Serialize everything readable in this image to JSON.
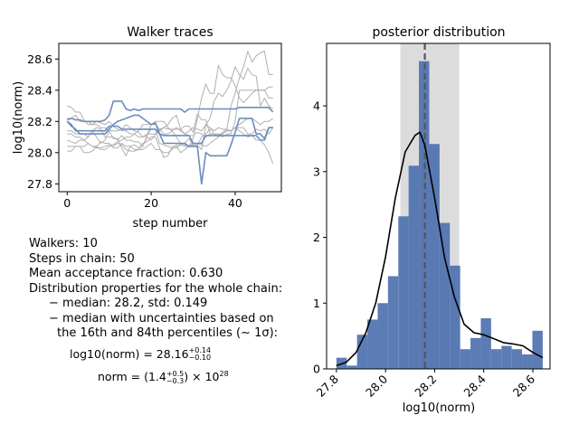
{
  "chart_data": [
    {
      "type": "line",
      "title": "Walker traces",
      "xlabel": "step number",
      "ylabel": "log10(norm)",
      "xlim": [
        -2,
        51
      ],
      "ylim": [
        27.75,
        28.7
      ],
      "xticks": [
        0,
        20,
        40
      ],
      "yticks": [
        27.8,
        28.0,
        28.2,
        28.4,
        28.6
      ],
      "walkers_count": 10,
      "steps": 50,
      "highlighted_series_color": "#6b8cbe",
      "background_series_color": "#b0b0b0",
      "series": [
        {
          "highlight": true,
          "values": [
            28.21,
            28.22,
            28.21,
            28.21,
            28.2,
            28.2,
            28.2,
            28.2,
            28.2,
            28.21,
            28.24,
            28.33,
            28.33,
            28.33,
            28.28,
            28.27,
            28.28,
            28.27,
            28.28,
            28.28,
            28.28,
            28.28,
            28.28,
            28.28,
            28.28,
            28.28,
            28.28,
            28.28,
            28.26,
            28.28,
            28.28,
            28.28,
            28.28,
            28.28,
            28.28,
            28.28,
            28.28,
            28.28,
            28.28,
            28.28,
            28.28,
            28.29,
            28.29,
            28.29,
            28.29,
            28.29,
            28.29,
            28.29,
            28.29,
            28.26
          ]
        },
        {
          "highlight": true,
          "values": [
            28.2,
            28.18,
            28.14,
            28.14,
            28.14,
            28.14,
            28.14,
            28.14,
            28.14,
            28.14,
            28.17,
            28.17,
            28.17,
            28.15,
            28.15,
            28.15,
            28.15,
            28.15,
            28.15,
            28.15,
            28.15,
            28.15,
            28.12,
            28.11,
            28.11,
            28.11,
            28.11,
            28.11,
            28.11,
            28.11,
            28.06,
            28.06,
            28.06,
            28.11,
            28.11,
            28.11,
            28.11,
            28.11,
            28.11,
            28.11,
            28.11,
            28.11,
            28.11,
            28.11,
            28.11,
            28.11,
            28.08,
            28.08,
            28.16,
            28.16
          ]
        },
        {
          "highlight": true,
          "values": [
            28.2,
            28.17,
            28.15,
            28.12,
            28.12,
            28.12,
            28.12,
            28.12,
            28.12,
            28.12,
            28.15,
            28.18,
            28.2,
            28.21,
            28.22,
            28.23,
            28.24,
            28.24,
            28.22,
            28.2,
            28.18,
            28.19,
            28.12,
            28.06,
            28.06,
            28.06,
            28.06,
            28.06,
            28.06,
            28.04,
            28.04,
            28.04,
            27.8,
            28.0,
            27.98,
            27.98,
            27.98,
            27.98,
            27.98,
            28.05,
            28.13,
            28.22,
            28.22,
            28.22,
            28.22,
            28.12,
            28.12,
            28.09,
            28.16,
            28.16
          ]
        },
        {
          "highlight": false,
          "values": [
            28.3,
            28.29,
            28.26,
            28.26,
            28.21,
            28.18,
            28.18,
            28.18,
            28.16,
            28.16,
            28.14,
            28.14,
            28.14,
            28.15,
            28.18,
            28.16,
            28.14,
            28.13,
            28.1,
            28.11,
            28.18,
            28.18,
            28.15,
            28.16,
            28.18,
            28.22,
            28.24,
            28.15,
            28.17,
            28.17,
            28.13,
            28.25,
            28.21,
            28.21,
            28.12,
            28.12,
            28.12,
            28.1,
            28.12,
            28.12,
            28.2,
            28.4,
            28.4,
            28.4,
            28.4,
            28.4,
            28.4,
            28.4,
            28.35,
            28.35
          ]
        },
        {
          "highlight": false,
          "values": [
            28.14,
            28.14,
            28.12,
            28.12,
            28.12,
            28.1,
            28.14,
            28.16,
            28.15,
            28.1,
            28.1,
            28.1,
            28.08,
            28.11,
            28.08,
            28.08,
            28.07,
            28.07,
            28.04,
            28.11,
            28.15,
            28.15,
            28.06,
            28.05,
            28.04,
            28.03,
            28.03,
            28.05,
            28.06,
            28.09,
            28.05,
            28.05,
            28.02,
            28.18,
            28.22,
            28.33,
            28.38,
            28.36,
            28.4,
            28.46,
            28.55,
            28.5,
            28.47,
            28.54,
            28.5,
            28.49,
            28.3,
            28.35,
            28.3,
            28.28
          ]
        },
        {
          "highlight": false,
          "values": [
            28.08,
            28.07,
            28.06,
            28.08,
            28.08,
            28.1,
            28.14,
            28.1,
            28.06,
            28.08,
            28.14,
            28.09,
            28.09,
            28.03,
            27.98,
            28.04,
            28.05,
            28.03,
            28.06,
            28.07,
            28.1,
            28.1,
            28.03,
            27.97,
            27.98,
            28.04,
            28.04,
            28.0,
            28.02,
            28.04,
            28.09,
            28.22,
            28.35,
            28.44,
            28.38,
            28.38,
            28.56,
            28.5,
            28.48,
            28.48,
            28.43,
            28.35,
            28.32,
            28.35,
            28.38,
            28.4,
            28.4,
            28.4,
            28.42,
            28.42
          ]
        },
        {
          "highlight": false,
          "values": [
            28.04,
            28.04,
            28.04,
            28.04,
            28.04,
            28.06,
            28.04,
            28.04,
            28.07,
            28.06,
            28.06,
            28.03,
            28.03,
            28.06,
            28.04,
            28.04,
            28.02,
            28.02,
            28.02,
            28.04,
            28.06,
            28.02,
            28.02,
            28.0,
            28.0,
            28.02,
            28.05,
            28.05,
            28.04,
            28.04,
            28.05,
            28.05,
            28.1,
            28.12,
            28.15,
            28.12,
            28.1,
            28.13,
            28.15,
            28.3,
            28.38,
            28.48,
            28.55,
            28.65,
            28.58,
            28.62,
            28.64,
            28.65,
            28.5,
            28.5
          ]
        },
        {
          "highlight": false,
          "values": [
            28.22,
            28.22,
            28.24,
            28.2,
            28.2,
            28.2,
            28.18,
            28.2,
            28.19,
            28.18,
            28.2,
            28.17,
            28.15,
            28.14,
            28.14,
            28.12,
            28.12,
            28.1,
            28.1,
            28.12,
            28.12,
            28.12,
            28.14,
            28.16,
            28.15,
            28.15,
            28.15,
            28.15,
            28.12,
            28.14,
            28.16,
            28.15,
            28.14,
            28.18,
            28.16,
            28.14,
            28.16,
            28.15,
            28.15,
            28.14,
            28.16,
            28.14,
            28.12,
            28.1,
            28.11,
            28.08,
            28.08,
            28.05,
            28.0,
            27.93
          ]
        },
        {
          "highlight": false,
          "values": [
            28.01,
            28.01,
            28.04,
            28.04,
            28.0,
            28.0,
            28.01,
            28.04,
            28.02,
            28.02,
            28.04,
            28.04,
            28.06,
            28.05,
            28.02,
            28.01,
            28.01,
            28.02,
            28.04,
            28.1,
            28.08,
            28.12,
            28.15,
            28.12,
            28.12,
            28.14,
            28.16,
            28.14,
            28.12,
            28.11,
            28.11,
            28.13,
            28.12,
            28.1,
            28.12,
            28.12,
            28.12,
            28.12,
            28.14,
            28.14,
            28.16,
            28.16,
            28.16,
            28.12,
            28.12,
            28.15,
            28.14,
            28.15,
            28.12,
            28.16
          ]
        },
        {
          "highlight": false,
          "values": [
            28.12,
            28.12,
            28.1,
            28.1,
            28.08,
            28.06,
            28.04,
            28.03,
            28.03,
            28.04,
            28.05,
            28.05,
            28.07,
            28.08,
            28.1,
            28.1,
            28.12,
            28.14,
            28.18,
            28.18,
            28.18,
            28.2,
            28.2,
            28.2,
            28.16,
            28.14,
            28.1,
            28.06,
            28.05,
            28.04,
            28.06,
            28.06,
            28.05,
            28.04,
            28.06,
            28.08,
            28.1,
            28.12,
            28.14,
            28.14,
            28.16,
            28.18,
            28.2,
            28.22,
            28.22,
            28.2,
            28.18,
            28.2,
            28.2,
            28.22
          ]
        }
      ]
    },
    {
      "type": "bar",
      "title": "posterior distribution",
      "xlabel": "log10(norm)",
      "ylabel": "",
      "xlim": [
        27.76,
        28.67
      ],
      "ylim": [
        0,
        4.95
      ],
      "xticks": [
        27.8,
        28.0,
        28.2,
        28.4,
        28.6
      ],
      "yticks": [
        0,
        1,
        2,
        3,
        4
      ],
      "bar_color": "#4a6eae",
      "bin_edges": [
        27.8,
        27.842,
        27.884,
        27.926,
        27.968,
        28.01,
        28.052,
        28.094,
        28.136,
        28.178,
        28.22,
        28.262,
        28.304,
        28.346,
        28.388,
        28.43,
        28.472,
        28.514,
        28.556,
        28.598,
        28.64
      ],
      "counts": [
        0.17,
        0.05,
        0.52,
        0.75,
        1.0,
        1.41,
        2.32,
        3.09,
        4.68,
        3.42,
        2.22,
        1.57,
        0.3,
        0.47,
        0.77,
        0.3,
        0.35,
        0.3,
        0.22,
        0.58
      ],
      "credible_interval": [
        28.06,
        28.3
      ],
      "median": 28.16,
      "kde_x": [
        27.8,
        27.84,
        27.88,
        27.92,
        27.96,
        28.0,
        28.04,
        28.08,
        28.12,
        28.14,
        28.16,
        28.2,
        28.24,
        28.28,
        28.32,
        28.36,
        28.4,
        28.44,
        28.48,
        28.52,
        28.56,
        28.6,
        28.64
      ],
      "kde_y": [
        0.05,
        0.1,
        0.25,
        0.55,
        1.0,
        1.7,
        2.6,
        3.3,
        3.55,
        3.6,
        3.4,
        2.6,
        1.7,
        1.1,
        0.68,
        0.55,
        0.52,
        0.46,
        0.4,
        0.38,
        0.35,
        0.25,
        0.17
      ]
    }
  ],
  "summary": {
    "walkers": "Walkers: 10",
    "steps": "Steps in chain: 50",
    "acceptance": "Mean acceptance fraction: 0.630",
    "dist_header": "Distribution properties for the whole chain:",
    "median_std": "− median: 28.2, std: 0.149",
    "median_unc_1": "− median with uncertainties based on",
    "median_unc_2": "the 16th and 84th percentiles (∼ 1σ):",
    "eq1_lhs": "log10(norm) = 28.16",
    "eq1_up": "+0.14",
    "eq1_down": "−0.10",
    "eq2_lhs": "norm = (1.4",
    "eq2_up": "+0.5",
    "eq2_down": "−0.3",
    "eq2_rhs": ") × 10",
    "eq2_exp": "28"
  }
}
